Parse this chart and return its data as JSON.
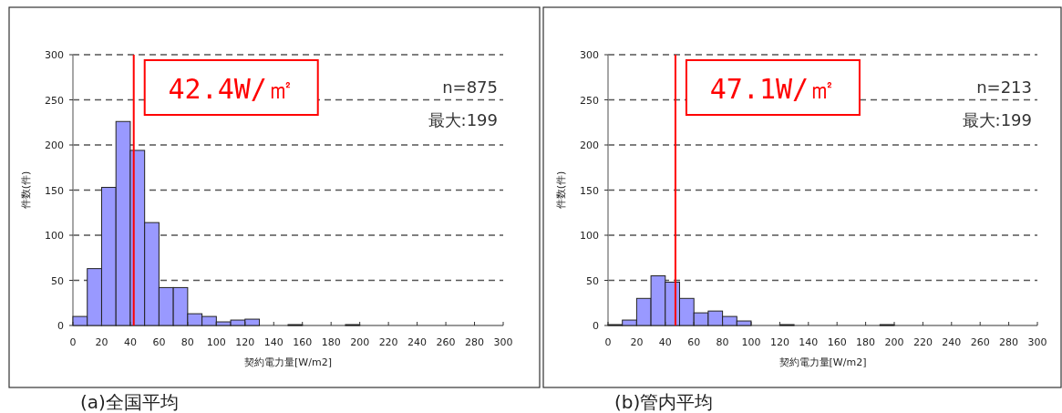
{
  "chart_data": [
    {
      "type": "histogram",
      "title": "(a)全国平均",
      "xlabel": "契約電力量[W/m2]",
      "ylabel": "件数(件)",
      "bins": [
        0,
        10,
        20,
        30,
        40,
        50,
        60,
        70,
        80,
        90,
        100,
        110,
        120,
        130,
        140,
        150,
        160,
        170,
        180,
        190,
        200,
        210,
        220,
        230,
        240,
        250,
        260,
        270,
        280,
        290,
        300
      ],
      "values": [
        10,
        63,
        153,
        226,
        194,
        114,
        42,
        42,
        13,
        10,
        4,
        6,
        7,
        0,
        0,
        1,
        0,
        0,
        0,
        1,
        0,
        0,
        0,
        0,
        0,
        0,
        0,
        0,
        0,
        0
      ],
      "color": "#9999ff",
      "xlim": [
        0,
        300
      ],
      "ylim": [
        0,
        300
      ],
      "xticks": [
        0,
        20,
        40,
        60,
        80,
        100,
        120,
        140,
        160,
        180,
        200,
        220,
        240,
        260,
        280,
        300
      ],
      "yticks": [
        0,
        50,
        100,
        150,
        200,
        250,
        300
      ],
      "grid": "y",
      "ref_lines": [
        {
          "axis": "x",
          "value": 42.4,
          "label": "42.4W/㎡",
          "color": "#ff0000"
        }
      ],
      "annotations": [
        "n=875",
        "最大:199"
      ]
    },
    {
      "type": "histogram",
      "title": "(b)管内平均",
      "xlabel": "契約電力量[W/m2]",
      "ylabel": "件数(件)",
      "bins": [
        0,
        10,
        20,
        30,
        40,
        50,
        60,
        70,
        80,
        90,
        100,
        110,
        120,
        130,
        140,
        150,
        160,
        170,
        180,
        190,
        200,
        210,
        220,
        230,
        240,
        250,
        260,
        270,
        280,
        290,
        300
      ],
      "values": [
        1,
        6,
        30,
        55,
        48,
        30,
        14,
        16,
        10,
        5,
        0,
        0,
        1,
        0,
        0,
        0,
        0,
        0,
        0,
        1,
        0,
        0,
        0,
        0,
        0,
        0,
        0,
        0,
        0,
        0
      ],
      "color": "#9999ff",
      "xlim": [
        0,
        300
      ],
      "ylim": [
        0,
        300
      ],
      "xticks": [
        0,
        20,
        40,
        60,
        80,
        100,
        120,
        140,
        160,
        180,
        200,
        220,
        240,
        260,
        280,
        300
      ],
      "yticks": [
        0,
        50,
        100,
        150,
        200,
        250,
        300
      ],
      "grid": "y",
      "ref_lines": [
        {
          "axis": "x",
          "value": 47.1,
          "label": "47.1W/㎡",
          "color": "#ff0000"
        }
      ],
      "annotations": [
        "n=213",
        "最大:199"
      ]
    }
  ]
}
